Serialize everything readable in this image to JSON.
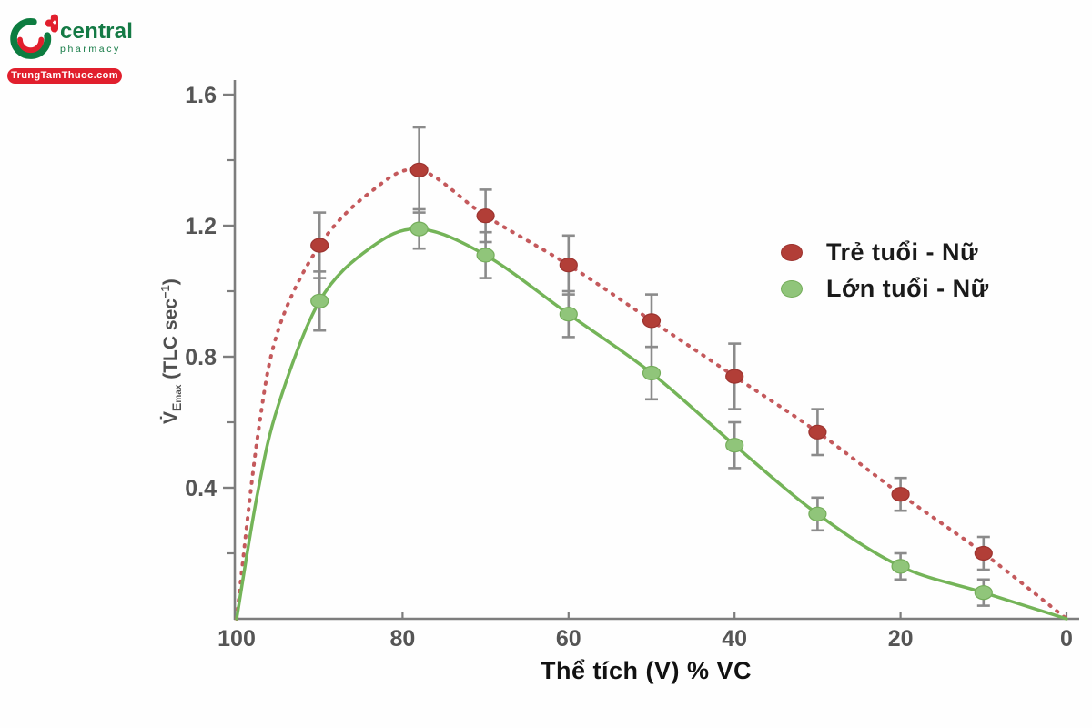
{
  "logo": {
    "brand": "central",
    "subbrand": "pharmacy",
    "badge": "TrungTamThuoc.com",
    "colors": {
      "green": "#147a45",
      "red": "#e11f2d"
    }
  },
  "chart_data": {
    "type": "line",
    "title": "",
    "xlabel": "Thể tích (V) % VC",
    "ylabel_parts": {
      "v": "V̇",
      "sub_e": "E",
      "sub_max": "max",
      "rest": " (TLC sec",
      "sup": "−1",
      "close": ")"
    },
    "xlim": [
      100,
      0
    ],
    "x_reversed": true,
    "ylim": [
      0,
      1.65
    ],
    "x_ticks": [
      100,
      80,
      60,
      40,
      20,
      0
    ],
    "y_major_ticks": [
      0.4,
      0.8,
      1.2,
      1.6
    ],
    "y_minor_ticks": [
      0.2,
      0.6,
      1.0,
      1.4
    ],
    "grid": false,
    "legend_position": "right",
    "axis_color": "#7d7d7d",
    "tick_label_color": "#555555",
    "error_bar_color": "#8b8b8b",
    "series": [
      {
        "name": "Trẻ tuổi - Nữ",
        "style": "dotted",
        "line_color": "#c4595c",
        "marker_color": "#b23e37",
        "marker_edge": "#9c332f",
        "points": [
          {
            "x": 90,
            "y": 1.14,
            "err": 0.1
          },
          {
            "x": 78,
            "y": 1.37,
            "err": 0.13
          },
          {
            "x": 70,
            "y": 1.23,
            "err": 0.08
          },
          {
            "x": 60,
            "y": 1.08,
            "err": 0.09
          },
          {
            "x": 50,
            "y": 0.91,
            "err": 0.08
          },
          {
            "x": 40,
            "y": 0.74,
            "err": 0.1
          },
          {
            "x": 30,
            "y": 0.57,
            "err": 0.07
          },
          {
            "x": 20,
            "y": 0.38,
            "err": 0.05
          },
          {
            "x": 10,
            "y": 0.2,
            "err": 0.05
          }
        ],
        "curve": [
          [
            100,
            0.0
          ],
          [
            97.5,
            0.55
          ],
          [
            95,
            0.88
          ],
          [
            90,
            1.14
          ],
          [
            84,
            1.3
          ],
          [
            78,
            1.37
          ],
          [
            70,
            1.23
          ],
          [
            60,
            1.08
          ],
          [
            50,
            0.91
          ],
          [
            40,
            0.74
          ],
          [
            30,
            0.57
          ],
          [
            20,
            0.38
          ],
          [
            10,
            0.2
          ],
          [
            0,
            0.0
          ]
        ]
      },
      {
        "name": "Lớn tuổi - Nữ",
        "style": "solid",
        "line_color": "#74b458",
        "marker_color": "#90c57a",
        "marker_edge": "#74ad5a",
        "points": [
          {
            "x": 90,
            "y": 0.97,
            "err": 0.09
          },
          {
            "x": 78,
            "y": 1.19,
            "err": 0.06
          },
          {
            "x": 70,
            "y": 1.11,
            "err": 0.07
          },
          {
            "x": 60,
            "y": 0.93,
            "err": 0.07
          },
          {
            "x": 50,
            "y": 0.75,
            "err": 0.08
          },
          {
            "x": 40,
            "y": 0.53,
            "err": 0.07
          },
          {
            "x": 30,
            "y": 0.32,
            "err": 0.05
          },
          {
            "x": 20,
            "y": 0.16,
            "err": 0.04
          },
          {
            "x": 10,
            "y": 0.08,
            "err": 0.04
          }
        ],
        "curve": [
          [
            100,
            0.0
          ],
          [
            97.5,
            0.38
          ],
          [
            95,
            0.65
          ],
          [
            90,
            0.97
          ],
          [
            84,
            1.13
          ],
          [
            78,
            1.19
          ],
          [
            70,
            1.11
          ],
          [
            60,
            0.93
          ],
          [
            50,
            0.75
          ],
          [
            40,
            0.53
          ],
          [
            30,
            0.32
          ],
          [
            20,
            0.16
          ],
          [
            10,
            0.08
          ],
          [
            0,
            0.0
          ]
        ]
      }
    ]
  }
}
